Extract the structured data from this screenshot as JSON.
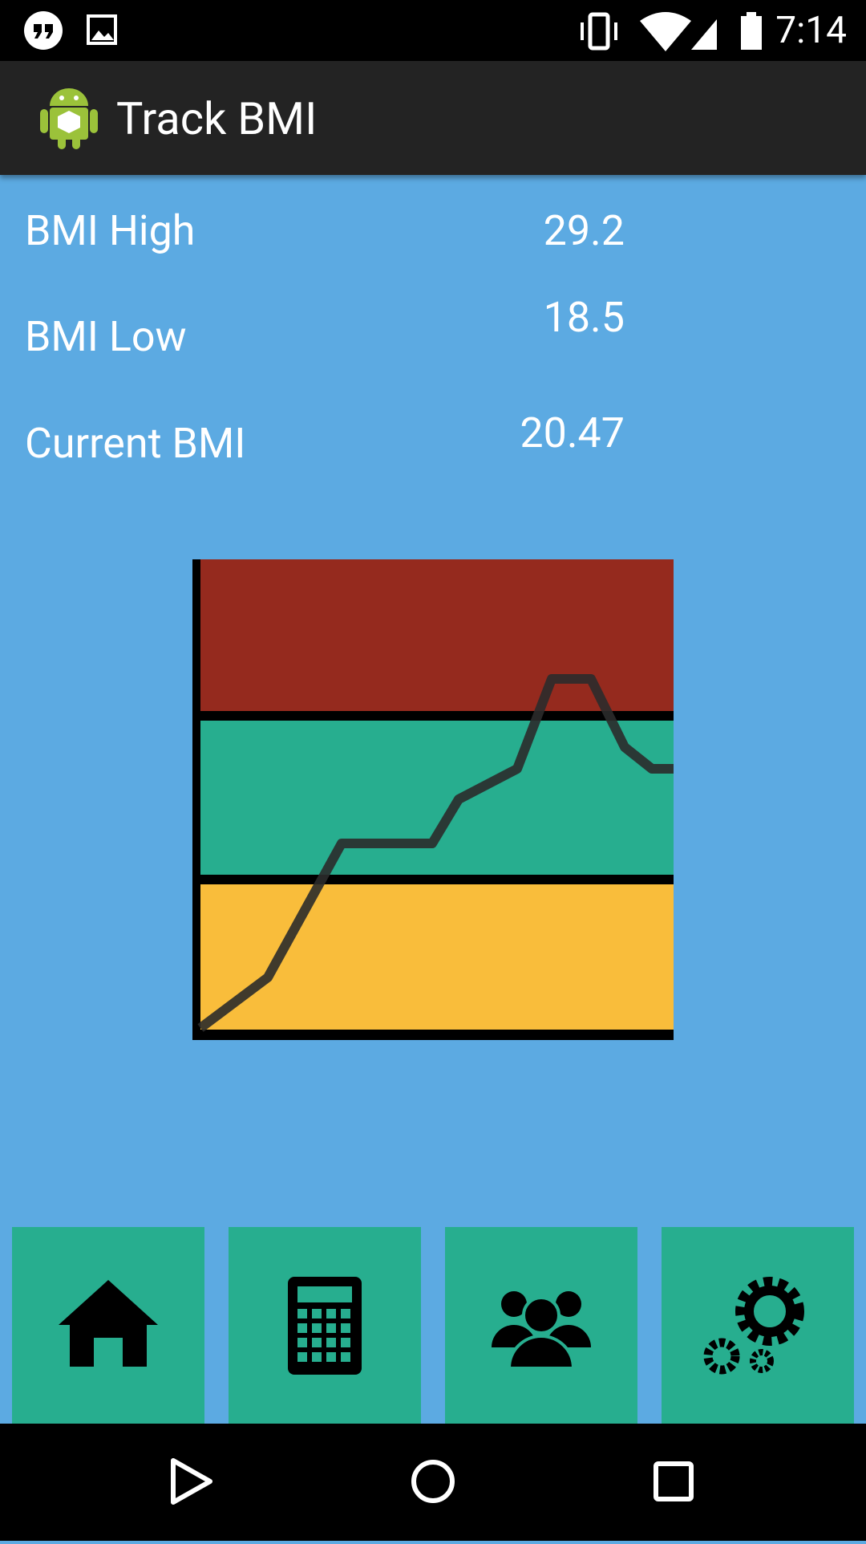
{
  "status_bar": {
    "time": "7:14"
  },
  "app_bar": {
    "title": "Track BMI"
  },
  "stats": [
    {
      "label": "BMI High",
      "value": "29.2"
    },
    {
      "label": "BMI Low",
      "value": "18.5"
    },
    {
      "label": "Current BMI",
      "value": "20.47"
    }
  ]
}
